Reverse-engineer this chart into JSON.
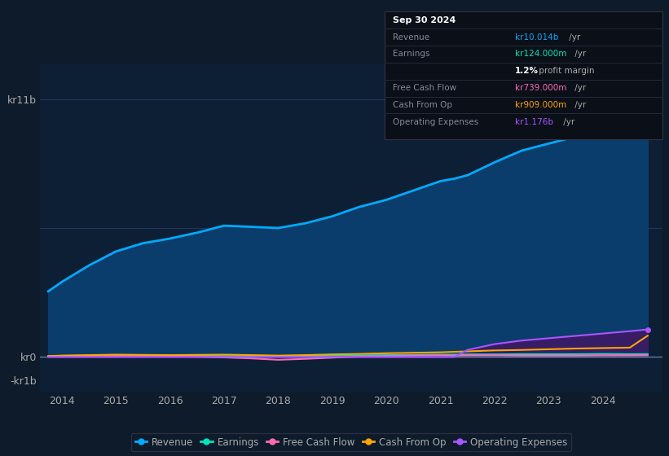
{
  "background_color": "#0d1b2a",
  "plot_bg_color": "#0d1f35",
  "grid_color": "#1e3a5f",
  "text_color": "#aaaaaa",
  "years": [
    2013.75,
    2014.0,
    2014.5,
    2015.0,
    2015.5,
    2016.0,
    2016.5,
    2017.0,
    2017.5,
    2018.0,
    2018.5,
    2019.0,
    2019.5,
    2020.0,
    2020.5,
    2021.0,
    2021.25,
    2021.5,
    2022.0,
    2022.5,
    2023.0,
    2023.5,
    2024.0,
    2024.5,
    2024.83
  ],
  "revenue": [
    2.8,
    3.2,
    3.9,
    4.5,
    4.85,
    5.05,
    5.3,
    5.6,
    5.55,
    5.5,
    5.7,
    6.0,
    6.4,
    6.7,
    7.1,
    7.5,
    7.6,
    7.75,
    8.3,
    8.8,
    9.1,
    9.4,
    9.65,
    9.9,
    10.014
  ],
  "earnings": [
    0.04,
    0.05,
    0.06,
    0.07,
    0.07,
    0.06,
    0.05,
    0.04,
    0.03,
    0.02,
    0.04,
    0.06,
    0.07,
    0.08,
    0.09,
    0.1,
    0.1,
    0.11,
    0.11,
    0.12,
    0.12,
    0.12,
    0.13,
    0.12,
    0.124
  ],
  "free_cash_flow": [
    0.02,
    0.03,
    0.04,
    0.05,
    0.04,
    0.02,
    0.01,
    -0.02,
    -0.06,
    -0.12,
    -0.08,
    -0.03,
    0.02,
    0.04,
    0.06,
    0.07,
    0.06,
    0.07,
    0.07,
    0.06,
    0.06,
    0.06,
    0.07,
    0.07,
    0.0739
  ],
  "cash_from_op": [
    0.04,
    0.06,
    0.08,
    0.1,
    0.09,
    0.08,
    0.09,
    0.1,
    0.08,
    0.06,
    0.08,
    0.11,
    0.13,
    0.16,
    0.18,
    0.2,
    0.22,
    0.24,
    0.28,
    0.3,
    0.33,
    0.36,
    0.38,
    0.4,
    0.909
  ],
  "operating_expenses": [
    0.0,
    0.0,
    0.0,
    0.0,
    0.0,
    0.0,
    0.0,
    0.0,
    0.0,
    0.0,
    0.0,
    0.0,
    0.0,
    0.0,
    0.0,
    0.0,
    0.0,
    0.3,
    0.55,
    0.7,
    0.8,
    0.9,
    1.0,
    1.1,
    1.176
  ],
  "revenue_color": "#00aaff",
  "revenue_fill_color": "#0a3d6b",
  "earnings_color": "#00e5bb",
  "free_cash_flow_color": "#ff69b4",
  "cash_from_op_color": "#ffa500",
  "operating_expenses_color": "#aa55ff",
  "operating_expenses_fill_color": "#3d1a66",
  "ylim_min": -1.5,
  "ylim_max": 12.5,
  "ytick_labels": [
    "kr11b",
    "kr0",
    "-kr1b"
  ],
  "ytick_values": [
    11,
    0,
    -1
  ],
  "xtick_years": [
    2014,
    2015,
    2016,
    2017,
    2018,
    2019,
    2020,
    2021,
    2022,
    2023,
    2024
  ],
  "legend_labels": [
    "Revenue",
    "Earnings",
    "Free Cash Flow",
    "Cash From Op",
    "Operating Expenses"
  ],
  "legend_colors": [
    "#00aaff",
    "#00e5bb",
    "#ff69b4",
    "#ffa500",
    "#aa55ff"
  ]
}
